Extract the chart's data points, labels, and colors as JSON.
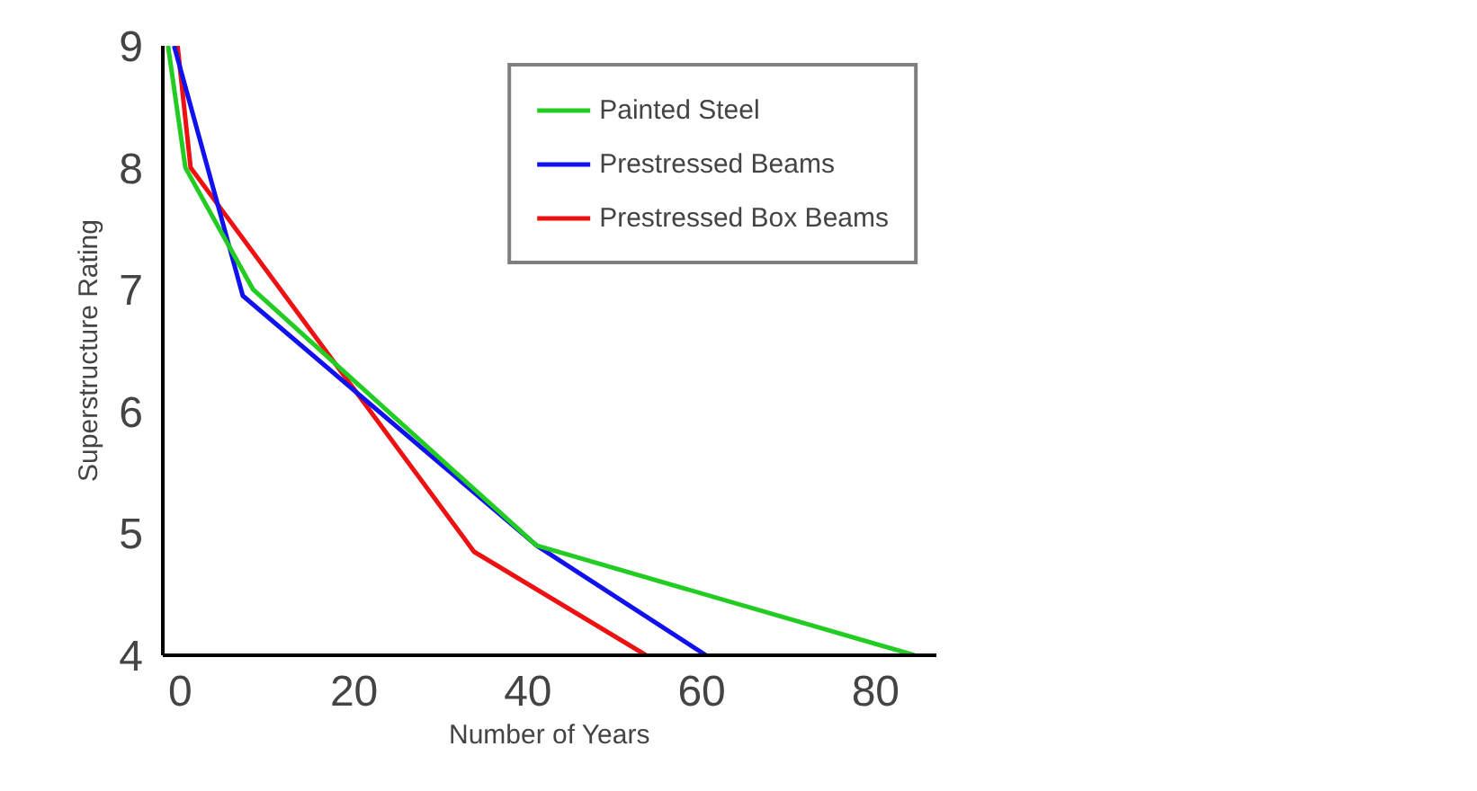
{
  "chart_data": {
    "type": "line",
    "xlabel": "Number of Years",
    "ylabel": "Superstructure Rating",
    "xlim": [
      -2,
      87
    ],
    "ylim": [
      4,
      9
    ],
    "xticks": [
      0,
      20,
      40,
      60,
      80
    ],
    "yticks": [
      4,
      5,
      6,
      7,
      8,
      9
    ],
    "grid": false,
    "legend": "top right",
    "series": [
      {
        "name": "Painted Steel",
        "color": "#22cc22",
        "x": [
          -1.4,
          0.6,
          8.4,
          41,
          84.5
        ],
        "values": [
          9,
          8,
          7,
          4.9,
          4
        ]
      },
      {
        "name": "Prestressed Beams",
        "color": "#1111ee",
        "x": [
          -0.7,
          7.2,
          41,
          60.5
        ],
        "values": [
          9,
          6.95,
          4.9,
          4
        ]
      },
      {
        "name": "Prestressed Box Beams",
        "color": "#ee1111",
        "x": [
          -0.3,
          1.2,
          33.8,
          53.6
        ],
        "values": [
          9,
          8,
          4.85,
          4
        ]
      }
    ]
  }
}
